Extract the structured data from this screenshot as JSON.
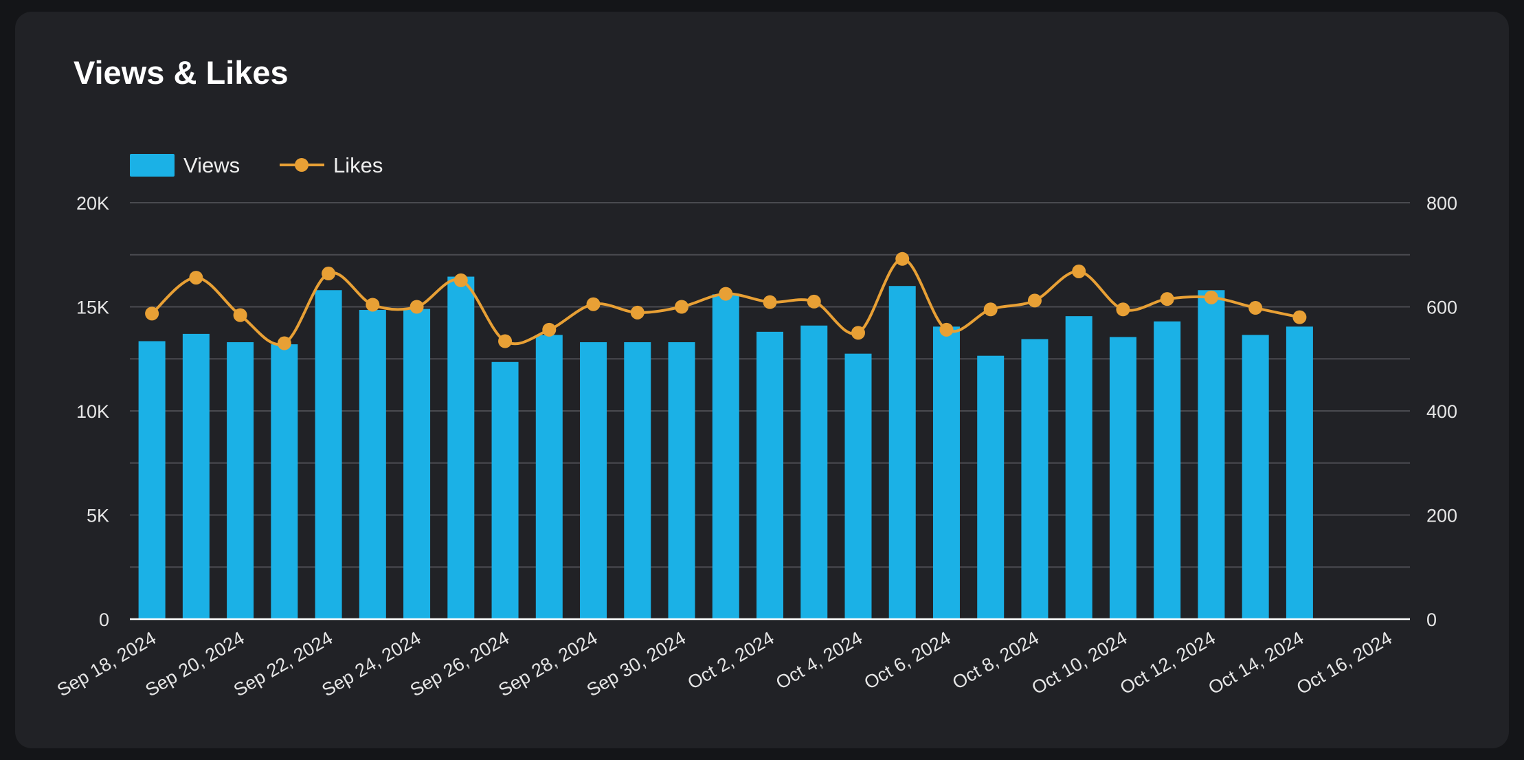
{
  "card": {
    "title": "Views & Likes"
  },
  "colors": {
    "views": "#1bb1e6",
    "likes": "#e8a035",
    "grid": "#4a4b50",
    "baseline": "#ffffff",
    "background": "#212226"
  },
  "chart_data": {
    "type": "bar+line",
    "title": "Views & Likes",
    "legend": {
      "placement": "top-left",
      "entries": [
        "Views",
        "Likes"
      ]
    },
    "grid": true,
    "x_ticks": [
      "Sep 18, 2024",
      "Sep 20, 2024",
      "Sep 22, 2024",
      "Sep 24, 2024",
      "Sep 26, 2024",
      "Sep 28, 2024",
      "Sep 30, 2024",
      "Oct 2, 2024",
      "Oct 4, 2024",
      "Oct 6, 2024",
      "Oct 8, 2024",
      "Oct 10, 2024",
      "Oct 12, 2024",
      "Oct 14, 2024",
      "Oct 16, 2024"
    ],
    "x_range": [
      "2024-09-18",
      "2024-10-17"
    ],
    "dates": [
      "2024-09-18",
      "2024-09-19",
      "2024-09-20",
      "2024-09-21",
      "2024-09-22",
      "2024-09-23",
      "2024-09-24",
      "2024-09-25",
      "2024-09-26",
      "2024-09-27",
      "2024-09-28",
      "2024-09-29",
      "2024-09-30",
      "2024-10-01",
      "2024-10-02",
      "2024-10-03",
      "2024-10-04",
      "2024-10-05",
      "2024-10-06",
      "2024-10-07",
      "2024-10-08",
      "2024-10-09",
      "2024-10-10",
      "2024-10-11",
      "2024-10-12",
      "2024-10-13",
      "2024-10-14"
    ],
    "y_left": {
      "ticks": [
        "0",
        "5K",
        "10K",
        "15K",
        "20K"
      ],
      "range": [
        0,
        20000
      ]
    },
    "y_right": {
      "ticks": [
        "0",
        "200",
        "400",
        "600",
        "800"
      ],
      "range": [
        0,
        800
      ]
    },
    "series": [
      {
        "name": "Views",
        "type": "bar",
        "axis": "left",
        "values": [
          13350,
          13700,
          13300,
          13200,
          15800,
          14850,
          14900,
          16450,
          12350,
          13650,
          13300,
          13300,
          13300,
          15600,
          13800,
          14100,
          12750,
          16000,
          14050,
          12650,
          13450,
          14550,
          13550,
          14300,
          15800,
          13650,
          14050
        ]
      },
      {
        "name": "Likes",
        "type": "line",
        "axis": "right",
        "values": [
          587,
          656,
          584,
          530,
          664,
          604,
          600,
          651,
          534,
          556,
          605,
          589,
          600,
          625,
          609,
          610,
          550,
          692,
          556,
          595,
          612,
          668,
          595,
          615,
          618,
          598,
          580
        ]
      }
    ]
  }
}
